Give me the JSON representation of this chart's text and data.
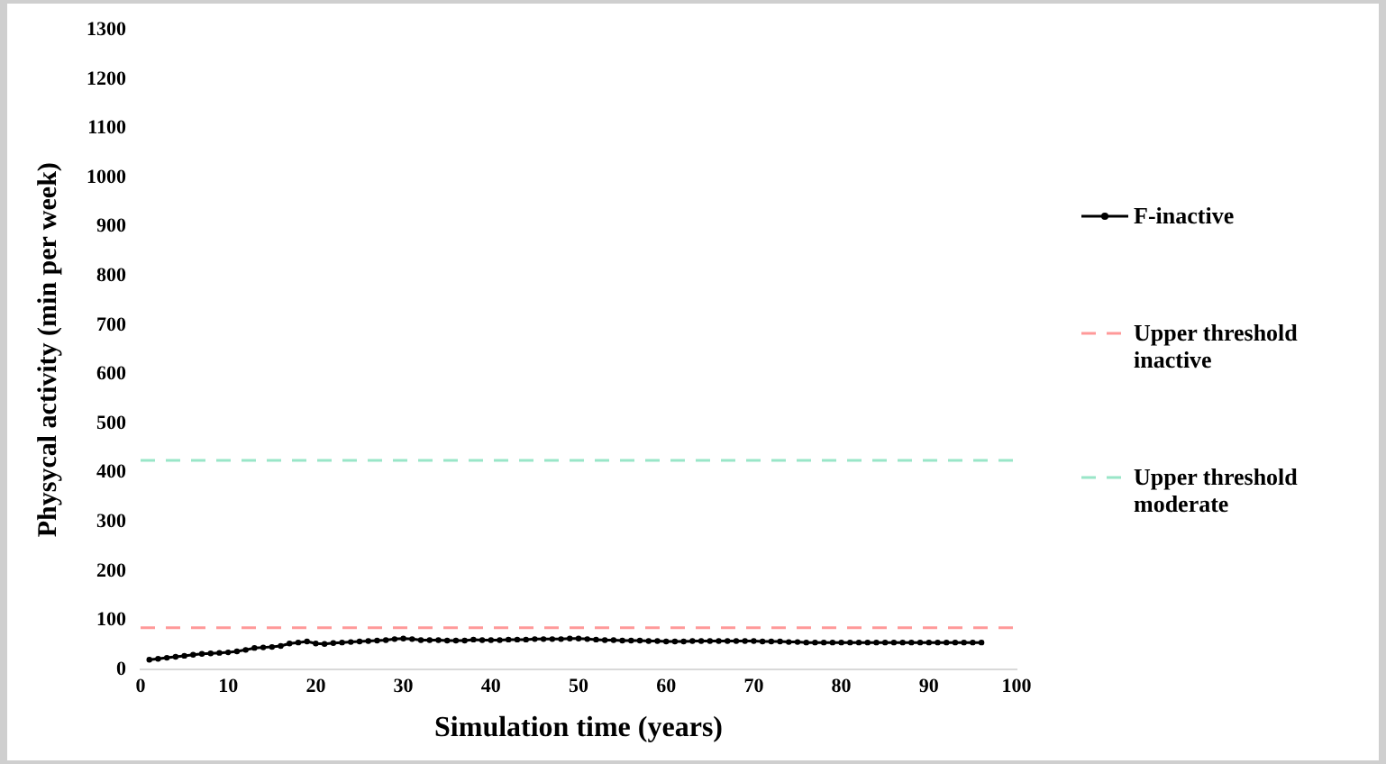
{
  "chart_data": {
    "type": "line",
    "xlabel": "Simulation time (years)",
    "ylabel": "Physycal activity (min per week)",
    "xlim": [
      0,
      100
    ],
    "xticks": [
      0,
      10,
      20,
      30,
      40,
      50,
      60,
      70,
      80,
      90,
      100
    ],
    "ylim": [
      0,
      1300
    ],
    "yticks": [
      0,
      100,
      200,
      300,
      400,
      500,
      600,
      700,
      800,
      900,
      1000,
      1100,
      1200,
      1300
    ],
    "grid": false,
    "legend": "right",
    "series": [
      {
        "name": "F-inactive",
        "color": "#000000",
        "marker": "circle",
        "line_style": "solid",
        "x": [
          1,
          2,
          3,
          4,
          5,
          6,
          7,
          8,
          9,
          10,
          11,
          12,
          13,
          14,
          15,
          16,
          17,
          18,
          19,
          20,
          21,
          22,
          23,
          24,
          25,
          26,
          27,
          28,
          29,
          30,
          31,
          32,
          33,
          34,
          35,
          36,
          37,
          38,
          39,
          40,
          41,
          42,
          43,
          44,
          45,
          46,
          47,
          48,
          49,
          50,
          51,
          52,
          53,
          54,
          55,
          56,
          57,
          58,
          59,
          60,
          61,
          62,
          63,
          64,
          65,
          66,
          67,
          68,
          69,
          70,
          71,
          72,
          73,
          74,
          75,
          76,
          77,
          78,
          79,
          80,
          81,
          82,
          83,
          84,
          85,
          86,
          87,
          88,
          89,
          90,
          91,
          92,
          93,
          94,
          95,
          96
        ],
        "values": [
          20,
          22,
          24,
          26,
          28,
          30,
          32,
          33,
          34,
          35,
          37,
          40,
          44,
          45,
          46,
          48,
          53,
          55,
          57,
          53,
          52,
          54,
          55,
          56,
          57,
          58,
          59,
          60,
          62,
          63,
          62,
          60,
          60,
          60,
          59,
          59,
          59,
          61,
          60,
          60,
          60,
          61,
          61,
          61,
          62,
          62,
          62,
          62,
          63,
          63,
          62,
          61,
          60,
          60,
          59,
          59,
          59,
          58,
          58,
          57,
          57,
          57,
          58,
          58,
          58,
          58,
          58,
          58,
          58,
          58,
          57,
          57,
          57,
          56,
          56,
          55,
          55,
          55,
          55,
          55,
          55,
          55,
          55,
          55,
          55,
          55,
          55,
          55,
          55,
          55,
          55,
          55,
          55,
          55,
          55,
          55
        ]
      },
      {
        "name": "Upper threshold inactive",
        "color": "#ff9999",
        "marker": "none",
        "line_style": "dashed",
        "x": [
          0,
          100
        ],
        "values": [
          85,
          85
        ]
      },
      {
        "name": "Upper threshold moderate",
        "color": "#99e6c8",
        "marker": "none",
        "line_style": "dashed",
        "x": [
          0,
          100
        ],
        "values": [
          425,
          425
        ]
      }
    ]
  }
}
